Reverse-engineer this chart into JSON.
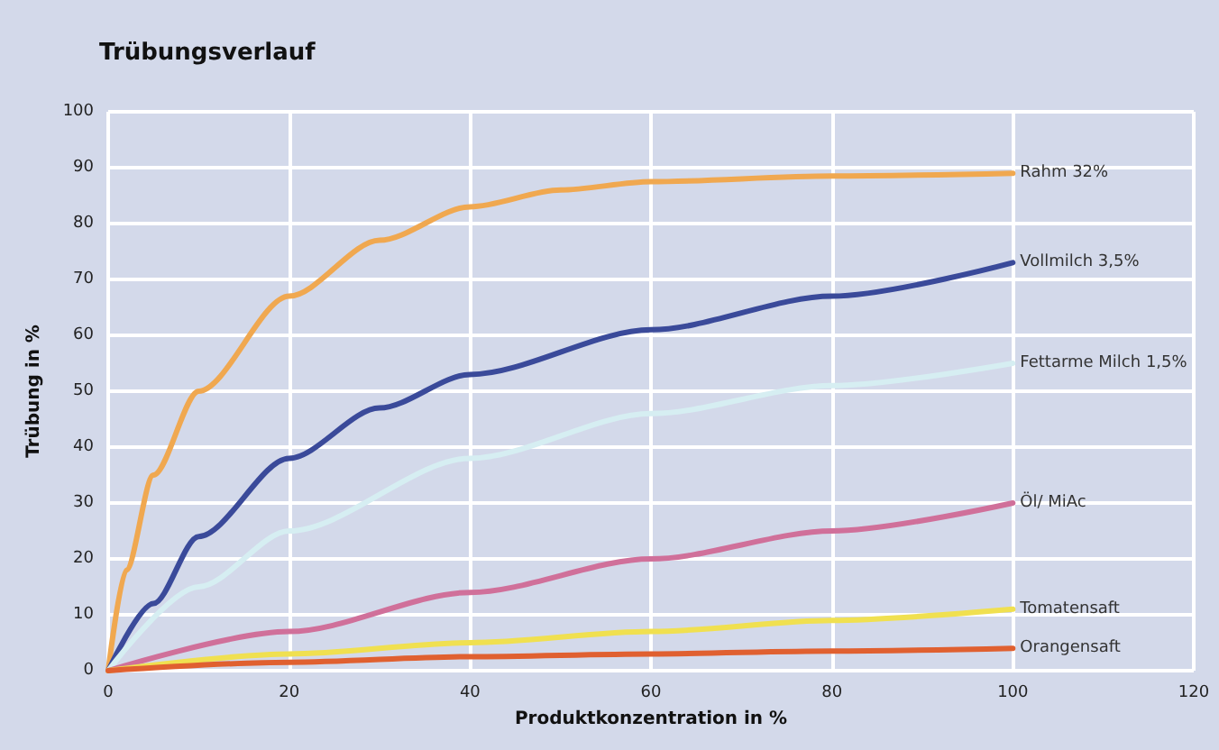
{
  "chart_data": {
    "type": "line",
    "title": "Trübungsverlauf",
    "xlabel": "Produktkonzentration in %",
    "ylabel": "Trübung in %",
    "xlim": [
      0,
      120
    ],
    "xticks": [
      0,
      20,
      40,
      60,
      80,
      100,
      120
    ],
    "ylim": [
      0,
      100
    ],
    "yticks": [
      0,
      10,
      20,
      30,
      40,
      50,
      60,
      70,
      80,
      90,
      100
    ],
    "grid": true,
    "legend": false,
    "marker": "none",
    "line_style": "solid",
    "series": [
      {
        "name": "Rahm 32%",
        "color": "#f0a850",
        "x": [
          0,
          2,
          5,
          10,
          20,
          30,
          40,
          50,
          60,
          80,
          100
        ],
        "values": [
          0,
          18,
          35,
          50,
          67,
          77,
          83,
          86,
          87.5,
          88.5,
          89
        ]
      },
      {
        "name": "Vollmilch 3,5%",
        "color": "#3a4a9a",
        "x": [
          0,
          5,
          10,
          20,
          30,
          40,
          60,
          80,
          100
        ],
        "values": [
          0,
          12,
          24,
          38,
          47,
          53,
          61,
          67,
          73
        ]
      },
      {
        "name": "Fettarme Milch 1,5%",
        "color": "#d6eef2",
        "x": [
          0,
          10,
          20,
          40,
          60,
          80,
          100
        ],
        "values": [
          0,
          15,
          25,
          38,
          46,
          51,
          55
        ]
      },
      {
        "name": "Öl/ MiAc",
        "color": "#d0709a",
        "x": [
          0,
          20,
          40,
          60,
          80,
          100
        ],
        "values": [
          0,
          7,
          14,
          20,
          25,
          30
        ]
      },
      {
        "name": "Tomatensaft",
        "color": "#f0e050",
        "x": [
          0,
          20,
          40,
          60,
          80,
          100
        ],
        "values": [
          0,
          3,
          5,
          7,
          9,
          11
        ]
      },
      {
        "name": "Orangensaft",
        "color": "#e06030",
        "x": [
          0,
          20,
          40,
          60,
          80,
          100
        ],
        "values": [
          0,
          1.5,
          2.5,
          3,
          3.5,
          4
        ]
      }
    ]
  }
}
